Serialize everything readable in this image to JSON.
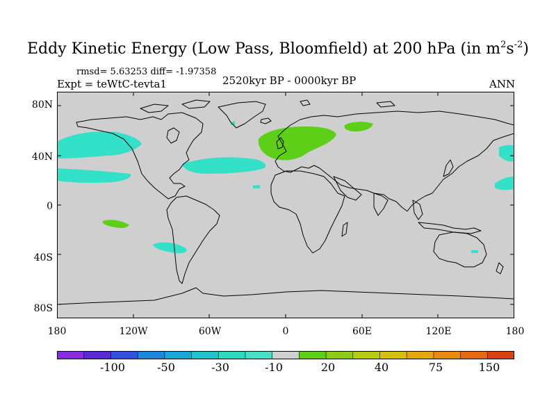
{
  "title": {
    "main": "Eddy Kinetic Energy (Low Pass, Bloomfield) at 200 hPa (in m",
    "sup1": "2",
    "mid": "s",
    "sup2": "-2",
    "end": ")"
  },
  "stats": "rmsd= 5.63253 diff= -1.97358",
  "expt": "Expt = teWtC-tevta1",
  "period": "2520kyr BP - 0000kyr BP",
  "season": "ANN",
  "y_axis_labels": [
    "80N",
    "40N",
    "0",
    "40S",
    "80S"
  ],
  "x_axis_labels": [
    "180",
    "120W",
    "60W",
    "0",
    "60E",
    "120E",
    "180"
  ],
  "colorbar": {
    "labels": [
      "-100",
      "-50",
      "-30",
      "-10",
      "20",
      "40",
      "75",
      "150"
    ],
    "colors": [
      "#8a2be2",
      "#5a2ad8",
      "#2f55e0",
      "#1f86e0",
      "#19a7d8",
      "#1ec4cf",
      "#29dcc0",
      "#46e0c8",
      "#cfcfcf",
      "#5ccf16",
      "#8ccc14",
      "#b4cc10",
      "#d6c00c",
      "#e4a80c",
      "#e88a0e",
      "#e46a10",
      "#dc4010"
    ]
  },
  "map": {
    "background": "#cfcfcf",
    "neg_color": "#33e0c8",
    "pos_color": "#5ccf16"
  }
}
